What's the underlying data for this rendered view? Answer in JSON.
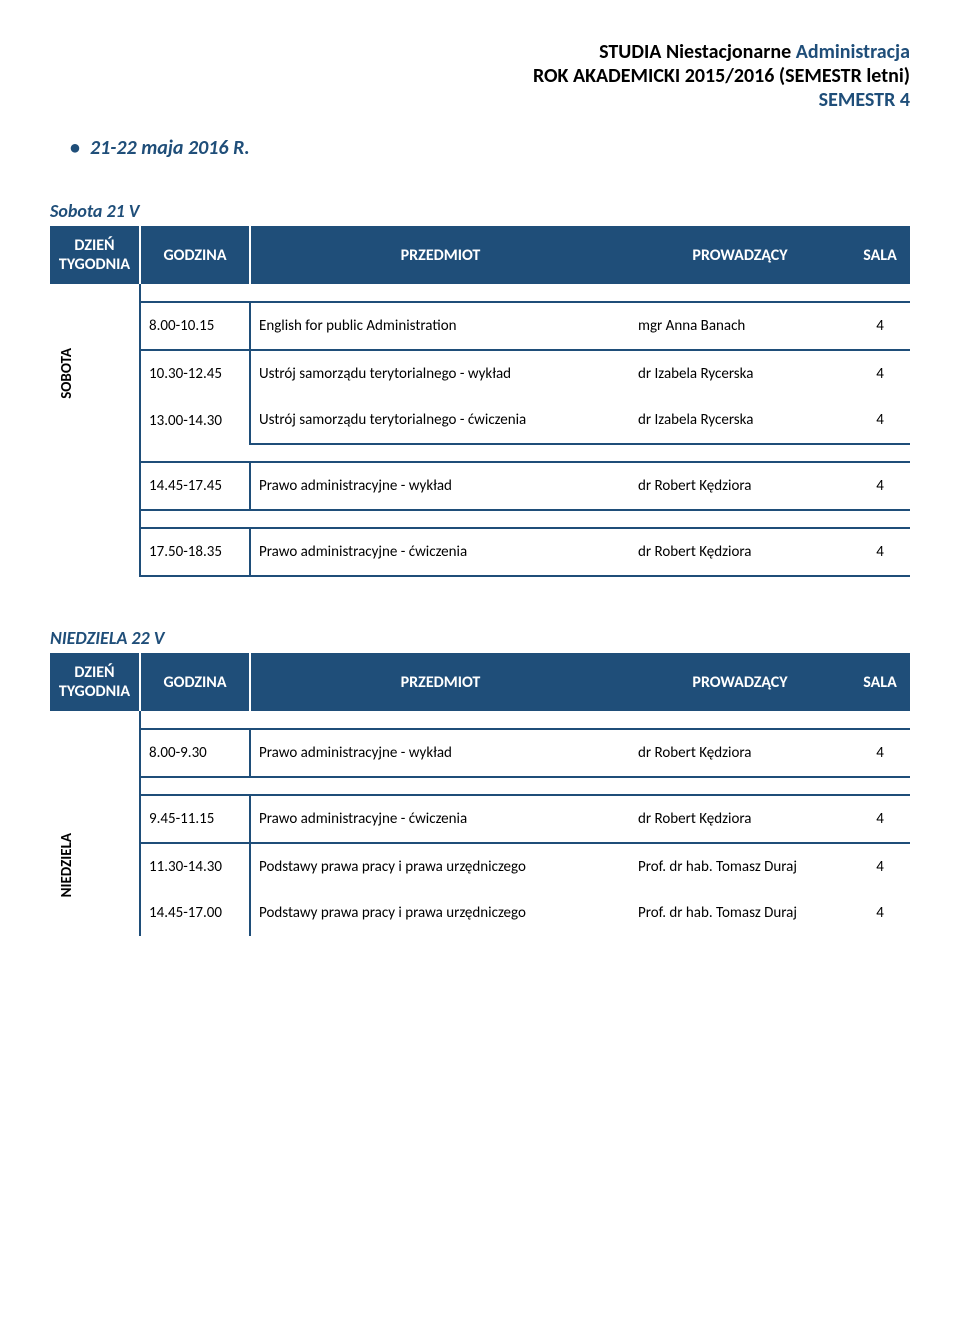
{
  "header": {
    "line1a": "STUDIA Niestacjonarne ",
    "line1b": "Administracja",
    "line2": "ROK AKADEMICKI 2015/2016 (SEMESTR letni)",
    "line3": "SEMESTR  4"
  },
  "date_bullet": "21-22 maja  2016 R.",
  "columns": {
    "day": "DZIEŃ TYGODNIA",
    "time": "GODZINA",
    "subject": "PRZEDMIOT",
    "prof": "PROWADZĄCY",
    "room": "SALA"
  },
  "saturday": {
    "label": "Sobota 21 V",
    "day_vert": "SOBOTA",
    "rows": [
      {
        "time": "8.00-10.15",
        "subject": "English for public  Administration",
        "prof": "mgr Anna Banach",
        "room": "4"
      },
      {
        "time": "10.30-12.45",
        "subject": "Ustrój samorządu terytorialnego - wykład",
        "prof": "dr Izabela Rycerska",
        "room": "4"
      },
      {
        "time": "13.00-14.30",
        "subject": "Ustrój samorządu terytorialnego - ćwiczenia",
        "prof": "dr Izabela Rycerska",
        "room": "4"
      },
      {
        "time": "14.45-17.45",
        "subject": "Prawo administracyjne - wykład",
        "prof": "dr Robert Kędziora",
        "room": "4"
      },
      {
        "time": "17.50-18.35",
        "subject": "Prawo administracyjne - ćwiczenia",
        "prof": "dr Robert Kędziora",
        "room": "4"
      }
    ]
  },
  "sunday": {
    "label": "NIEDZIELA  22 V",
    "day_vert": "NIEDZIELA",
    "rows": [
      {
        "time": "8.00-9.30",
        "subject": "Prawo administracyjne - wykład",
        "prof": "dr Robert Kędziora",
        "room": "4"
      },
      {
        "time": "9.45-11.15",
        "subject": "Prawo administracyjne - ćwiczenia",
        "prof": "dr Robert Kędziora",
        "room": "4"
      },
      {
        "time": "11.30-14.30",
        "subject": "Podstawy prawa pracy i prawa urzędniczego",
        "prof": "Prof. dr hab. Tomasz Duraj",
        "room": "4"
      },
      {
        "time": "14.45-17.00",
        "subject": "Podstawy prawa pracy i prawa urzędniczego",
        "prof": "Prof. dr hab. Tomasz Duraj",
        "room": "4"
      }
    ]
  }
}
